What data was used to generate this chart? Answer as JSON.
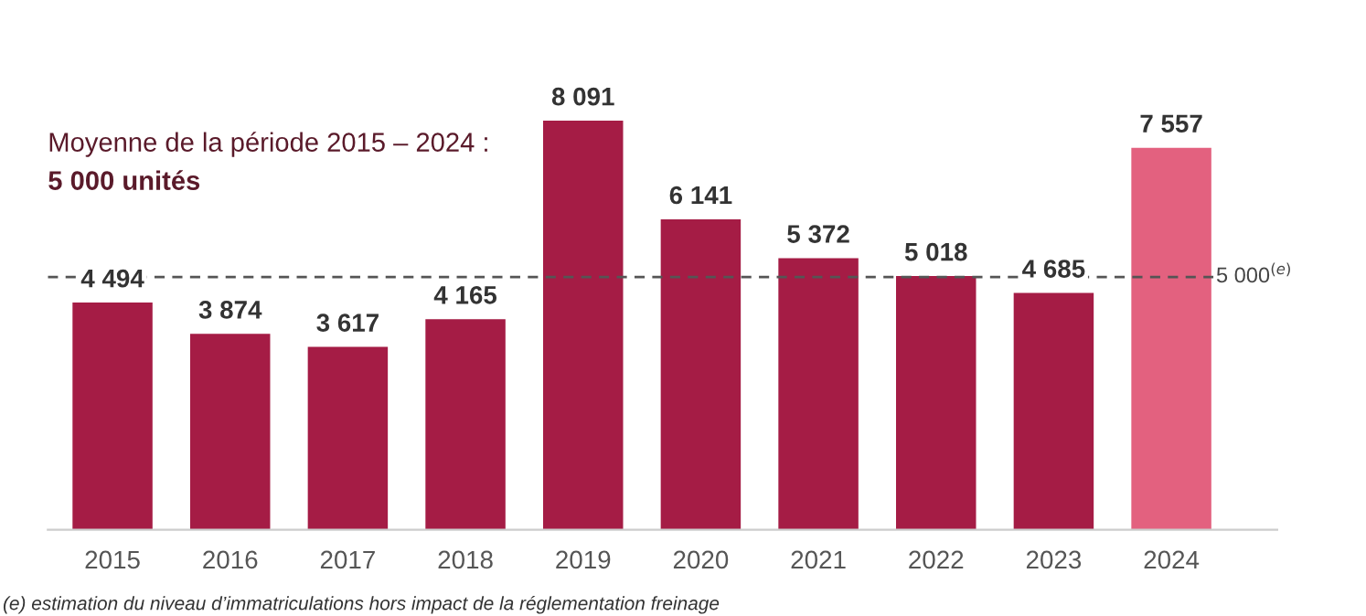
{
  "chart_data": {
    "type": "bar",
    "categories": [
      "2015",
      "2016",
      "2017",
      "2018",
      "2019",
      "2020",
      "2021",
      "2022",
      "2023",
      "2024"
    ],
    "values": [
      4494,
      3874,
      3617,
      4165,
      8091,
      6141,
      5372,
      5018,
      4685,
      7557
    ],
    "value_labels": [
      "4 494",
      "3 874",
      "3 617",
      "4 165",
      "8 091",
      "6 141",
      "5 372",
      "5 018",
      "4 685",
      "7 557"
    ],
    "colors": [
      "#a51c45",
      "#a51c45",
      "#a51c45",
      "#a51c45",
      "#a51c45",
      "#a51c45",
      "#a51c45",
      "#a51c45",
      "#a51c45",
      "#e3617f"
    ],
    "ref_lines": [
      {
        "axis": "y",
        "value": 5000,
        "label": "5 000$^{(e)}$",
        "color": "#555555",
        "line_style": "dashed"
      }
    ],
    "annotations": [
      "Moyenne de la période 2015 – 2024 :",
      "5 000 unités",
      "(e) estimation du niveau d’immatriculations hors impact de la réglementation freinage"
    ],
    "grid": false,
    "legend": false
  }
}
